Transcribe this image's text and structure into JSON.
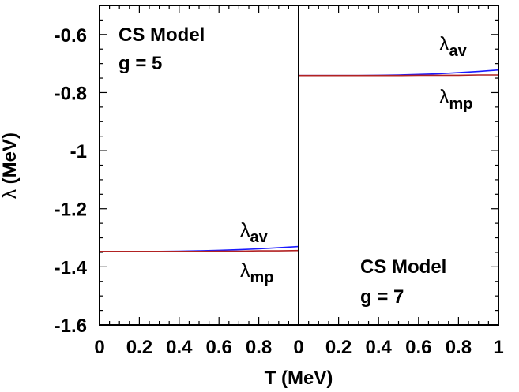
{
  "chart_data": {
    "type": "line",
    "xlabel_prefix": "T",
    "xlabel_suffix": "(MeV)",
    "ylabel_prefix": "λ",
    "ylabel_suffix": "(MeV)",
    "ylim": [
      -1.6,
      -0.5
    ],
    "yticks": [
      "-0.6",
      "-0.8",
      "-1",
      "-1.2",
      "-1.4",
      "-1.6"
    ],
    "ytick_values": [
      -0.6,
      -0.8,
      -1.0,
      -1.2,
      -1.4,
      -1.6
    ],
    "panels": [
      {
        "annotation": [
          "CS Model",
          "g = 5"
        ],
        "xlim": [
          0,
          1
        ],
        "xticks": [
          "0",
          "0.2",
          "0.4",
          "0.6",
          "0.8"
        ],
        "xtick_values": [
          0,
          0.2,
          0.4,
          0.6,
          0.8
        ],
        "series": [
          {
            "name": "λav",
            "color": "#1a1aff",
            "x": [
              0,
              0.1,
              0.2,
              0.3,
              0.4,
              0.5,
              0.6,
              0.7,
              0.8,
              0.9,
              1.0
            ],
            "y": [
              -1.347,
              -1.347,
              -1.347,
              -1.347,
              -1.346,
              -1.345,
              -1.343,
              -1.341,
              -1.338,
              -1.334,
              -1.33
            ]
          },
          {
            "name": "λmp",
            "color": "#b22222",
            "x": [
              0,
              0.1,
              0.2,
              0.3,
              0.4,
              0.5,
              0.6,
              0.7,
              0.8,
              0.9,
              1.0
            ],
            "y": [
              -1.347,
              -1.347,
              -1.347,
              -1.347,
              -1.347,
              -1.347,
              -1.346,
              -1.346,
              -1.345,
              -1.345,
              -1.344
            ]
          }
        ],
        "labels": {
          "av": {
            "base": "λ",
            "sub": "av"
          },
          "mp": {
            "base": "λ",
            "sub": "mp"
          }
        }
      },
      {
        "annotation": [
          "CS Model",
          "g = 7"
        ],
        "xlim": [
          0,
          1
        ],
        "xticks": [
          "0",
          "0.2",
          "0.4",
          "0.6",
          "0.8",
          "1"
        ],
        "xtick_values": [
          0,
          0.2,
          0.4,
          0.6,
          0.8,
          1.0
        ],
        "series": [
          {
            "name": "λav",
            "color": "#1a1aff",
            "x": [
              0,
              0.1,
              0.2,
              0.3,
              0.4,
              0.5,
              0.6,
              0.7,
              0.8,
              0.9,
              1.0
            ],
            "y": [
              -0.741,
              -0.741,
              -0.741,
              -0.741,
              -0.74,
              -0.739,
              -0.737,
              -0.735,
              -0.731,
              -0.727,
              -0.722
            ]
          },
          {
            "name": "λmp",
            "color": "#b22222",
            "x": [
              0,
              0.1,
              0.2,
              0.3,
              0.4,
              0.5,
              0.6,
              0.7,
              0.8,
              0.9,
              1.0
            ],
            "y": [
              -0.741,
              -0.741,
              -0.741,
              -0.741,
              -0.741,
              -0.741,
              -0.74,
              -0.74,
              -0.74,
              -0.739,
              -0.739
            ]
          }
        ],
        "labels": {
          "av": {
            "base": "λ",
            "sub": "av"
          },
          "mp": {
            "base": "λ",
            "sub": "mp"
          }
        }
      }
    ]
  }
}
